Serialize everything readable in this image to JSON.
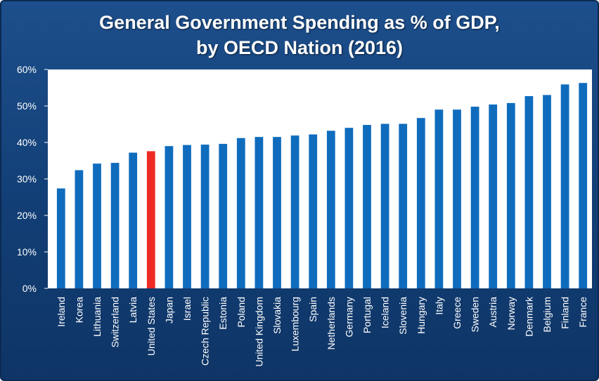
{
  "chart_data": {
    "type": "bar",
    "title": "General Government Spending as % of GDP,",
    "subtitle": "by OECD Nation (2016)",
    "xlabel": "",
    "ylabel": "",
    "ylim": [
      0,
      60
    ],
    "yticks": [
      "0%",
      "10%",
      "20%",
      "30%",
      "40%",
      "50%",
      "60%"
    ],
    "grid": false,
    "legend": "none",
    "categories": [
      "Ireland",
      "Korea",
      "Lithuania",
      "Switzerland",
      "Latvia",
      "United States",
      "Japan",
      "Israel",
      "Czech Republic",
      "Estonia",
      "Poland",
      "United Kingdom",
      "Slovakia",
      "Luxembourg",
      "Spain",
      "Netherlands",
      "Germany",
      "Portugal",
      "Iceland",
      "Slovenia",
      "Hungary",
      "Italy",
      "Greece",
      "Sweden",
      "Austria",
      "Norway",
      "Denmark",
      "Belgium",
      "Finland",
      "France"
    ],
    "values": [
      27.4,
      32.4,
      34.2,
      34.4,
      37.2,
      37.6,
      39.0,
      39.3,
      39.4,
      39.6,
      41.2,
      41.5,
      41.5,
      41.9,
      42.2,
      43.2,
      44.0,
      44.8,
      45.1,
      45.1,
      46.7,
      49.0,
      49.0,
      49.8,
      50.4,
      50.8,
      52.7,
      53.0,
      55.9,
      56.3
    ],
    "highlight": "United States",
    "colors": {
      "bar": "#0f6cbd",
      "highlight": "#ee2a24",
      "plot_bg": "#ffffff",
      "background": "#13427a",
      "text": "#ffffff"
    }
  }
}
